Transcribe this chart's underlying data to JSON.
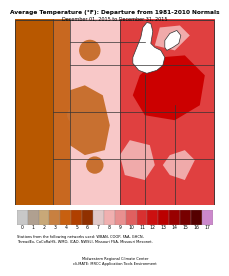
{
  "title": "Average Temperature (°F): Departure from 1981-2010 Normals",
  "subtitle": "December 01, 2015 to December 31, 2015",
  "colorbar_colors": [
    "#c8c8c8",
    "#b0a090",
    "#c8a878",
    "#c88040",
    "#c86010",
    "#b04000",
    "#903000",
    "#e0c8c8",
    "#f0b0b0",
    "#e89090",
    "#e06060",
    "#d83030",
    "#cc1010",
    "#bb0000",
    "#990000",
    "#770000",
    "#550000",
    "#cc88cc"
  ],
  "colorbar_labels": [
    "0",
    "1",
    "2",
    "3",
    "4",
    "5",
    "6",
    "7",
    "8",
    "9",
    "10",
    "11",
    "12",
    "13",
    "14",
    "15",
    "16",
    "17"
  ],
  "footnote1": "Stations from the following networks used: WBAN, COOP, FAA, GHCN,",
  "footnote2": "ThreadEx, CoCoRaHS, WMO, ICAO, NWSLI, Missouri FSA, Missouri Mesonet.",
  "footnote3": "Midwestern Regional Climate Center",
  "footnote4": "cli-MATE: MRCC Application Tools Environment",
  "fig_bg_color": "#ffffff",
  "map_region": {
    "left_brown_color": "#b85800",
    "center_pink_color": "#f5c0c0",
    "center_brown_color": "#c87838",
    "right_red_color": "#dd3333",
    "right_dark_red_color": "#cc1010",
    "lakes_color": "#ffffff",
    "border_color": "#333333"
  }
}
